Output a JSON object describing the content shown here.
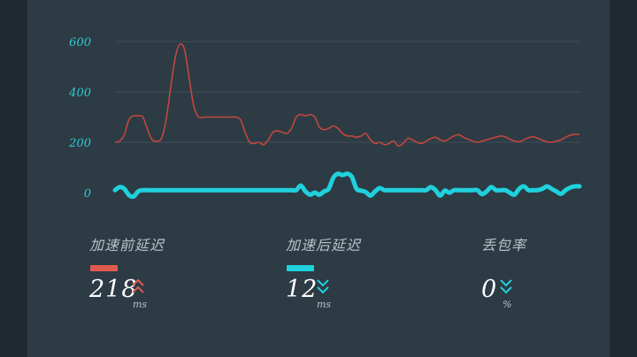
{
  "colors": {
    "before": "#e05a50",
    "before_line": "#c2473f",
    "after": "#1fd1dd",
    "grid": "#3e4e58",
    "tick": "#2fc9d6"
  },
  "chart_data": {
    "type": "line",
    "ylim": [
      0,
      600
    ],
    "yticks": [
      "600",
      "400",
      "200",
      "0"
    ],
    "x": [
      0,
      1,
      2,
      3,
      4,
      5,
      6,
      7,
      8,
      9,
      10,
      11,
      12,
      13,
      14,
      15,
      16,
      17,
      18,
      19,
      20,
      21,
      22,
      23,
      24,
      25,
      26,
      27,
      28,
      29,
      30,
      31,
      32,
      33,
      34,
      35,
      36,
      37,
      38,
      39,
      40,
      41,
      42,
      43,
      44,
      45,
      46,
      47,
      48,
      49,
      50,
      51,
      52,
      53,
      54,
      55,
      56,
      57,
      58,
      59,
      60,
      61,
      62,
      63,
      64,
      65,
      66,
      67,
      68,
      69,
      70,
      71,
      72,
      73,
      74,
      75,
      76,
      77,
      78,
      79,
      80,
      81,
      82,
      83,
      84,
      85,
      86,
      87,
      88,
      89,
      90,
      91,
      92,
      93,
      94,
      95,
      96,
      97,
      98,
      99,
      100
    ],
    "series": [
      {
        "values": [
          200,
          205,
          230,
          290,
          305,
          305,
          300,
          250,
          210,
          205,
          215,
          290,
          420,
          540,
          590,
          565,
          450,
          340,
          300,
          300,
          300,
          300,
          300,
          300,
          300,
          300,
          300,
          290,
          240,
          200,
          195,
          200,
          190,
          210,
          240,
          245,
          240,
          235,
          255,
          300,
          310,
          305,
          310,
          300,
          260,
          250,
          255,
          265,
          255,
          235,
          225,
          225,
          220,
          225,
          235,
          210,
          195,
          200,
          190,
          195,
          205,
          185,
          195,
          215,
          210,
          200,
          195,
          205,
          215,
          220,
          210,
          205,
          215,
          225,
          230,
          220,
          212,
          205,
          200,
          205,
          210,
          215,
          220,
          225,
          222,
          212,
          205,
          202,
          210,
          218,
          222,
          216,
          208,
          202,
          200,
          205,
          210,
          220,
          228,
          232,
          230
        ],
        "color_key": "before"
      },
      {
        "values": [
          10,
          22,
          15,
          -10,
          -15,
          5,
          10,
          10,
          10,
          10,
          10,
          10,
          10,
          10,
          10,
          10,
          10,
          10,
          10,
          10,
          10,
          10,
          10,
          10,
          10,
          10,
          10,
          10,
          10,
          10,
          10,
          10,
          10,
          10,
          10,
          10,
          10,
          10,
          10,
          10,
          28,
          5,
          -8,
          0,
          -8,
          5,
          15,
          60,
          75,
          70,
          75,
          62,
          15,
          8,
          2,
          -12,
          5,
          18,
          10,
          10,
          10,
          10,
          10,
          10,
          10,
          10,
          10,
          10,
          22,
          10,
          -12,
          8,
          0,
          10,
          10,
          10,
          10,
          10,
          10,
          -6,
          5,
          22,
          10,
          10,
          10,
          0,
          -8,
          15,
          25,
          10,
          10,
          10,
          15,
          25,
          15,
          5,
          -5,
          10,
          20,
          25,
          25
        ],
        "color_key": "after"
      }
    ]
  },
  "stats": [
    {
      "label": "加速前延迟",
      "value": "218",
      "unit": "ms",
      "trend": "up"
    },
    {
      "label": "加速后延迟",
      "value": "12",
      "unit": "ms",
      "trend": "down"
    },
    {
      "label": "丢包率",
      "value": "0",
      "unit": "%",
      "trend": "down"
    }
  ]
}
